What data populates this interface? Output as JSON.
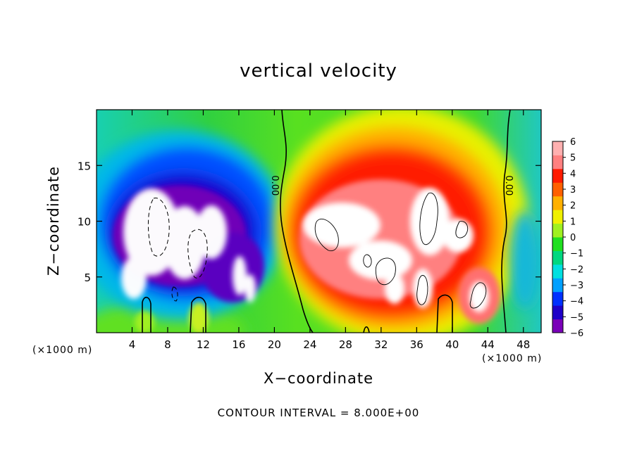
{
  "chart_data": {
    "type": "heatmap",
    "title": "vertical velocity",
    "xlabel": "X−coordinate",
    "ylabel": "Z−coordinate",
    "x_unit_left": "(×1000 m)",
    "x_unit_right": "(×1000 m)",
    "footer": "CONTOUR INTERVAL = 8.000E+00",
    "xlim": [
      0,
      50
    ],
    "ylim": [
      0,
      20
    ],
    "x_ticks": [
      4,
      8,
      12,
      16,
      20,
      24,
      28,
      32,
      36,
      40,
      44,
      48
    ],
    "y_ticks": [
      5,
      10,
      15
    ],
    "colorbar": {
      "min": -6,
      "max": 6,
      "ticks": [
        6,
        5,
        4,
        3,
        2,
        1,
        0,
        -1,
        -2,
        -3,
        -4,
        -5,
        -6
      ],
      "tick_labels": [
        "6",
        "5",
        "4",
        "3",
        "2",
        "1",
        "0",
        "−1",
        "−2",
        "−3",
        "−4",
        "−5",
        "−6"
      ],
      "colors": [
        "#7a00b8",
        "#1e00c8",
        "#0030ff",
        "#00a0ff",
        "#00e0e0",
        "#00d880",
        "#20e020",
        "#a0f020",
        "#f0f000",
        "#ffb000",
        "#ff6000",
        "#ff1a00",
        "#ff8080",
        "#ffb0b0"
      ]
    },
    "contour_labels": [
      {
        "text": "0.00",
        "x": 20,
        "y": 13.2
      },
      {
        "text": "0.00",
        "x": 46.3,
        "y": 13.2
      }
    ],
    "features": [
      {
        "kind": "downdraft",
        "x": 6.5,
        "z": 9.5,
        "w": -8
      },
      {
        "kind": "downdraft",
        "x": 11.2,
        "z": 8.2,
        "w": -7
      },
      {
        "kind": "downdraft",
        "x": 15.5,
        "z": 7.5,
        "w": -6
      },
      {
        "kind": "updraft",
        "x": 28,
        "z": 9.5,
        "w": 8
      },
      {
        "kind": "updraft",
        "x": 37.5,
        "z": 10,
        "w": 9
      },
      {
        "kind": "updraft",
        "x": 33,
        "z": 6,
        "w": 7
      },
      {
        "kind": "updraft",
        "x": 43.5,
        "z": 3,
        "w": 8
      },
      {
        "kind": "updraft",
        "x": 41,
        "z": 9.5,
        "w": 6
      }
    ]
  }
}
